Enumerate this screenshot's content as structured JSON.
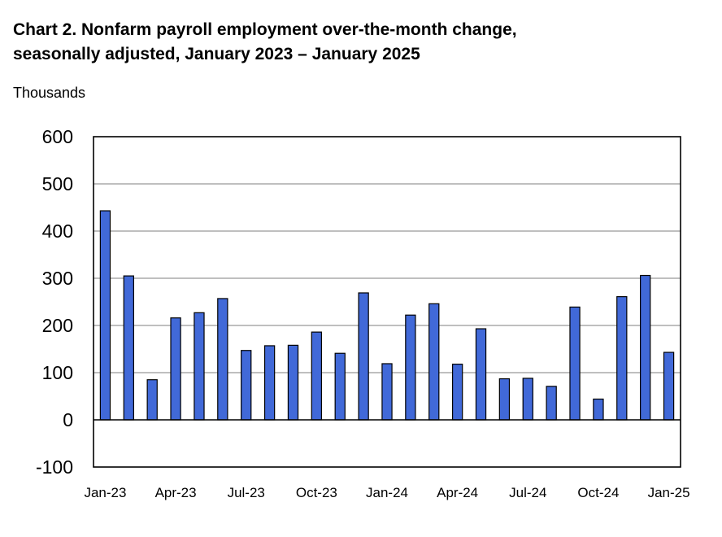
{
  "chart_data": {
    "type": "bar",
    "title_line1": "Chart 2. Nonfarm payroll employment over-the-month change,",
    "title_line2": "seasonally adjusted, January 2023 – January 2025",
    "ylabel": "Thousands",
    "xlabel": "",
    "ylim": [
      -100,
      600
    ],
    "yticks": [
      "600",
      "500",
      "400",
      "300",
      "200",
      "100",
      "0",
      "-100"
    ],
    "ytick_values": [
      600,
      500,
      400,
      300,
      200,
      100,
      0,
      -100
    ],
    "xtick_labels": [
      "Jan-23",
      "Apr-23",
      "Jul-23",
      "Oct-23",
      "Jan-24",
      "Apr-24",
      "Jul-24",
      "Oct-24",
      "Jan-25"
    ],
    "xtick_indices": [
      0,
      3,
      6,
      9,
      12,
      15,
      18,
      21,
      24
    ],
    "categories": [
      "Jan-23",
      "Feb-23",
      "Mar-23",
      "Apr-23",
      "May-23",
      "Jun-23",
      "Jul-23",
      "Aug-23",
      "Sep-23",
      "Oct-23",
      "Nov-23",
      "Dec-23",
      "Jan-24",
      "Feb-24",
      "Mar-24",
      "Apr-24",
      "May-24",
      "Jun-24",
      "Jul-24",
      "Aug-24",
      "Sep-24",
      "Oct-24",
      "Nov-24",
      "Dec-24",
      "Jan-25"
    ],
    "values": [
      443,
      305,
      85,
      216,
      227,
      257,
      147,
      157,
      158,
      186,
      141,
      269,
      119,
      222,
      246,
      118,
      193,
      87,
      88,
      71,
      239,
      44,
      261,
      306,
      143
    ],
    "grid": true,
    "legend": "none",
    "bar_color": "#4169d8"
  }
}
